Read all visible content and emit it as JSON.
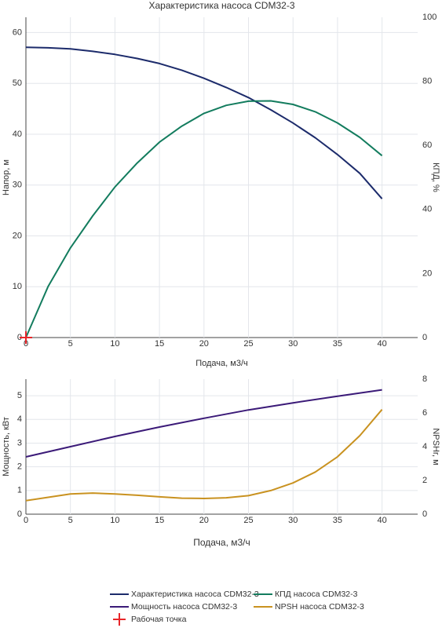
{
  "chart_data": [
    {
      "type": "line",
      "title": "Характеристика насоса CDM32-3",
      "x_label": "Подача, м3/ч",
      "y_label": "Напор, м",
      "y2_label": "КПД, %",
      "xlim": [
        0,
        44
      ],
      "xticks": [
        0,
        5,
        10,
        15,
        20,
        25,
        30,
        35,
        40
      ],
      "ylim": [
        0,
        63
      ],
      "yticks": [
        0,
        10,
        20,
        30,
        40,
        50,
        60
      ],
      "y2lim": [
        0,
        100
      ],
      "y2ticks": [
        0,
        20,
        40,
        60,
        80,
        100
      ],
      "grid": true,
      "series": [
        {
          "name": "Характеристика насоса CDM32-3",
          "color": "#1c2b6b",
          "x": [
            0,
            2.5,
            5,
            7.5,
            10,
            12.5,
            15,
            17.5,
            20,
            22.5,
            25,
            27.5,
            30,
            32.5,
            35,
            37.5,
            40
          ],
          "values": [
            57.1,
            57,
            56.8,
            56.3,
            55.7,
            54.9,
            53.9,
            52.6,
            51,
            49.2,
            47.2,
            44.8,
            42.2,
            39.3,
            36,
            32.3,
            27.3
          ]
        },
        {
          "name": "КПД насоса CDM32-3",
          "color": "#137c5e",
          "axis": "y2",
          "x": [
            0,
            2.5,
            5,
            7.5,
            10,
            12.5,
            15,
            17.5,
            20,
            22.5,
            25,
            27.5,
            30,
            32.5,
            35,
            37.5,
            40
          ],
          "values": [
            0,
            16,
            28,
            38,
            47,
            54.5,
            61,
            66,
            70,
            72.5,
            73.8,
            73.9,
            72.8,
            70.5,
            67,
            62.5,
            56.8
          ]
        },
        {
          "name": "Рабочая точка",
          "color": "#e8262a",
          "marker": "cross",
          "x": [
            0
          ],
          "values": [
            0
          ]
        }
      ]
    },
    {
      "type": "line",
      "x_label": "Подача, м3/ч",
      "y_label": "Мощность, кВт",
      "y2_label": "NPSHr, м",
      "xlim": [
        0,
        44
      ],
      "xticks": [
        0,
        5,
        10,
        15,
        20,
        25,
        30,
        35,
        40
      ],
      "ylim": [
        0,
        5.7
      ],
      "yticks": [
        0,
        1,
        2,
        3,
        4,
        5
      ],
      "y2lim": [
        0,
        8
      ],
      "y2ticks": [
        0,
        2,
        4,
        6,
        8
      ],
      "grid": true,
      "series": [
        {
          "name": "Мощность насоса CDM32-3",
          "color": "#3b1a78",
          "x": [
            0,
            5,
            10,
            15,
            20,
            25,
            30,
            35,
            40
          ],
          "values": [
            2.42,
            2.85,
            3.28,
            3.68,
            4.05,
            4.4,
            4.7,
            4.98,
            5.25
          ]
        },
        {
          "name": "NPSH насоса CDM32-3",
          "color": "#c99220",
          "axis": "y2",
          "x": [
            0,
            2.5,
            5,
            7.5,
            10,
            12.5,
            15,
            17.5,
            20,
            22.5,
            25,
            27.5,
            30,
            32.5,
            35,
            37.5,
            40
          ],
          "values": [
            0.8,
            1.0,
            1.2,
            1.25,
            1.2,
            1.12,
            1.03,
            0.95,
            0.93,
            0.97,
            1.1,
            1.4,
            1.85,
            2.5,
            3.4,
            4.65,
            6.2
          ]
        }
      ]
    }
  ]
}
